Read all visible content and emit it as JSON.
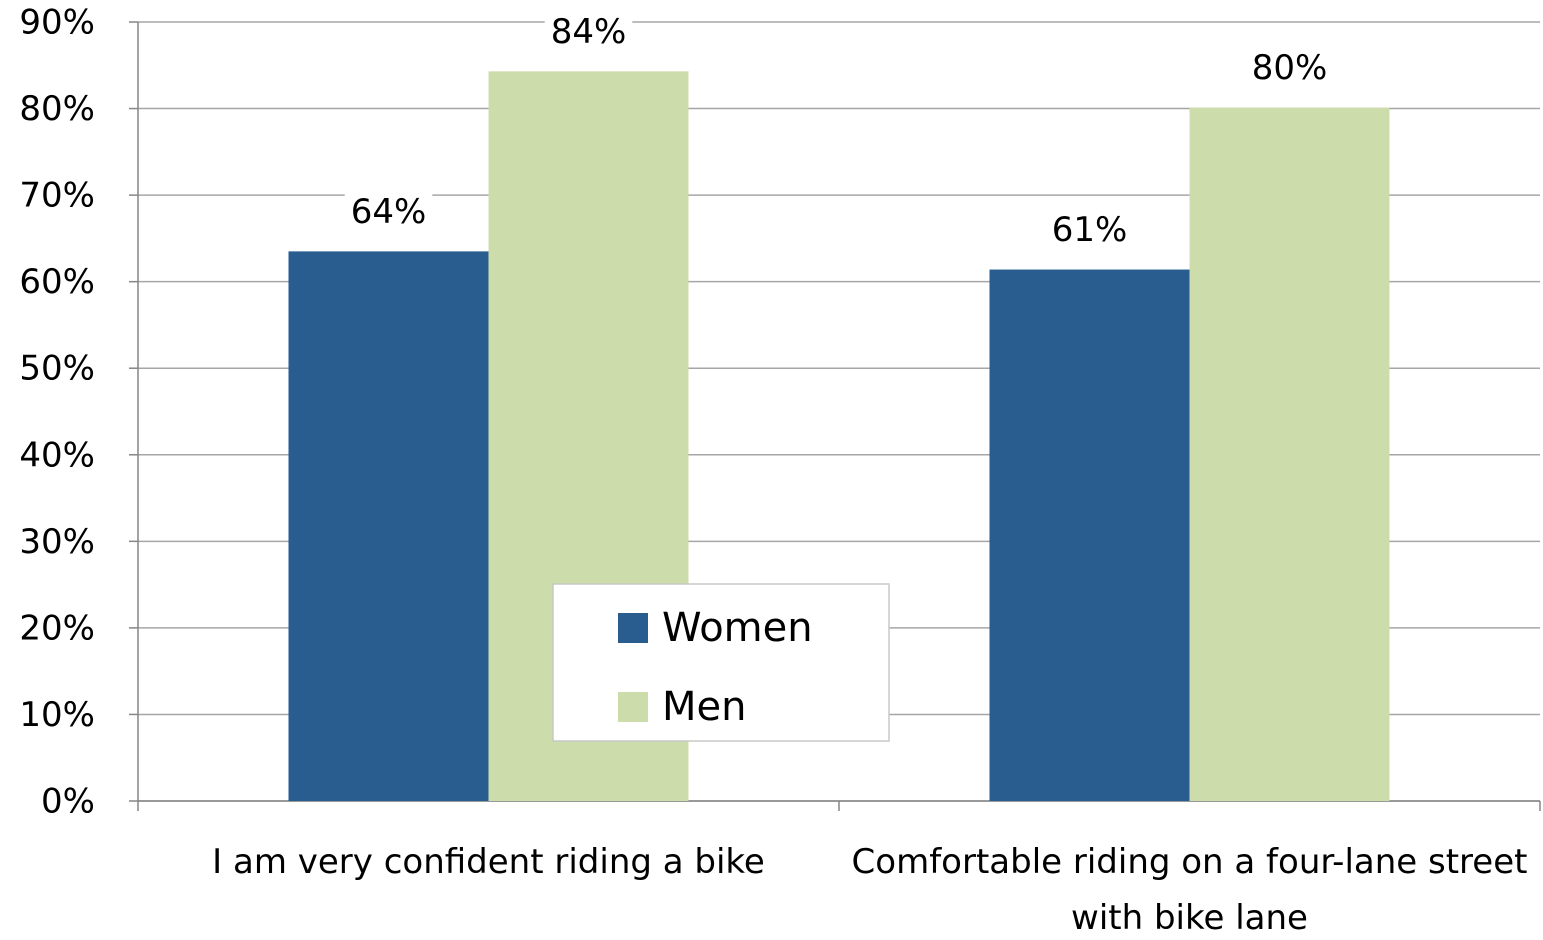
{
  "chart_data": {
    "type": "bar",
    "categories": [
      "I am very confident riding a bike",
      "Comfortable riding on a four-lane street with bike lane"
    ],
    "series": [
      {
        "name": "Women",
        "color": "#2a5d8f",
        "values": [
          63.5,
          61.4
        ],
        "value_labels": [
          "64%",
          "61%"
        ]
      },
      {
        "name": "Men",
        "color": "#cddcab",
        "values": [
          84.3,
          80.1
        ],
        "value_labels": [
          "84%",
          "80%"
        ]
      }
    ],
    "ylim": [
      0,
      90
    ],
    "yticks": [
      {
        "value": 0,
        "label": "0%"
      },
      {
        "value": 10,
        "label": "10%"
      },
      {
        "value": 20,
        "label": "20%"
      },
      {
        "value": 30,
        "label": "30%"
      },
      {
        "value": 40,
        "label": "40%"
      },
      {
        "value": 50,
        "label": "50%"
      },
      {
        "value": 60,
        "label": "60%"
      },
      {
        "value": 70,
        "label": "70%"
      },
      {
        "value": 80,
        "label": "80%"
      },
      {
        "value": 90,
        "label": "90%"
      }
    ],
    "grid": true
  }
}
